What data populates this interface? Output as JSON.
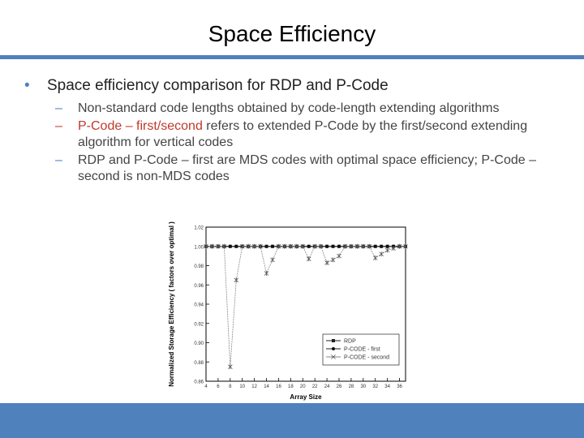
{
  "slide": {
    "title": "Space Efficiency",
    "bullet_main": "Space efficiency comparison for RDP and P-Code",
    "subs": [
      {
        "text": "Non-standard code lengths obtained by code-length extending algorithms"
      },
      {
        "highlight": "P-Code – first/second",
        "text": " refers to extended P-Code by the first/second extending algorithm for vertical codes"
      },
      {
        "text": "RDP and P-Code – first are MDS codes with optimal space efficiency;   P-Code – second is non-MDS codes"
      }
    ]
  },
  "colors": {
    "accent": "#4f81bd",
    "highlight": "#c0392b"
  },
  "chart_data": {
    "type": "line",
    "xlabel": "Array Size",
    "ylabel": "Normalized Storage Efficiency ( factors over optimal )",
    "xlim": [
      4,
      37
    ],
    "ylim": [
      0.86,
      1.02
    ],
    "x_ticks": [
      4,
      6,
      8,
      10,
      12,
      14,
      16,
      18,
      20,
      22,
      24,
      26,
      28,
      30,
      32,
      34,
      36
    ],
    "y_ticks": [
      0.86,
      0.88,
      0.9,
      0.92,
      0.94,
      0.96,
      0.98,
      1.0,
      1.02
    ],
    "y_tick_labels": [
      "0.86",
      "0.88",
      "0.90",
      "0.92",
      "0.94",
      "0.96",
      "0.98",
      "1.00",
      "1.02"
    ],
    "legend_position": "bottom-right",
    "series": [
      {
        "name": "RDP",
        "marker": "square",
        "x": [
          4,
          5,
          6,
          7,
          8,
          9,
          10,
          11,
          12,
          13,
          14,
          15,
          16,
          17,
          18,
          19,
          20,
          21,
          22,
          23,
          24,
          25,
          26,
          27,
          28,
          29,
          30,
          31,
          32,
          33,
          34,
          35,
          36,
          37
        ],
        "values": [
          1,
          1,
          1,
          1,
          1,
          1,
          1,
          1,
          1,
          1,
          1,
          1,
          1,
          1,
          1,
          1,
          1,
          1,
          1,
          1,
          1,
          1,
          1,
          1,
          1,
          1,
          1,
          1,
          1,
          1,
          1,
          1,
          1,
          1
        ]
      },
      {
        "name": "P-CODE - first",
        "marker": "circle",
        "x": [
          4,
          5,
          6,
          7,
          8,
          9,
          10,
          11,
          12,
          13,
          14,
          15,
          16,
          17,
          18,
          19,
          20,
          21,
          22,
          23,
          24,
          25,
          26,
          27,
          28,
          29,
          30,
          31,
          32,
          33,
          34,
          35,
          36,
          37
        ],
        "values": [
          1,
          1,
          1,
          1,
          1,
          1,
          1,
          1,
          1,
          1,
          1,
          1,
          1,
          1,
          1,
          1,
          1,
          1,
          1,
          1,
          1,
          1,
          1,
          1,
          1,
          1,
          1,
          1,
          1,
          1,
          1,
          1,
          1,
          1
        ]
      },
      {
        "name": "P-CODE - second",
        "marker": "asterisk",
        "x": [
          4,
          5,
          6,
          7,
          8,
          9,
          10,
          11,
          12,
          13,
          14,
          15,
          16,
          17,
          18,
          19,
          20,
          21,
          22,
          23,
          24,
          25,
          26,
          27,
          28,
          29,
          30,
          31,
          32,
          33,
          34,
          35,
          36,
          37
        ],
        "values": [
          1,
          1,
          1,
          1,
          0.875,
          0.965,
          1,
          1,
          1,
          1,
          0.972,
          0.986,
          1,
          1,
          1,
          1,
          1,
          0.987,
          1,
          1,
          0.983,
          0.986,
          0.99,
          1,
          1,
          1,
          1,
          1,
          0.988,
          0.992,
          0.996,
          0.998,
          1,
          1
        ]
      }
    ]
  }
}
